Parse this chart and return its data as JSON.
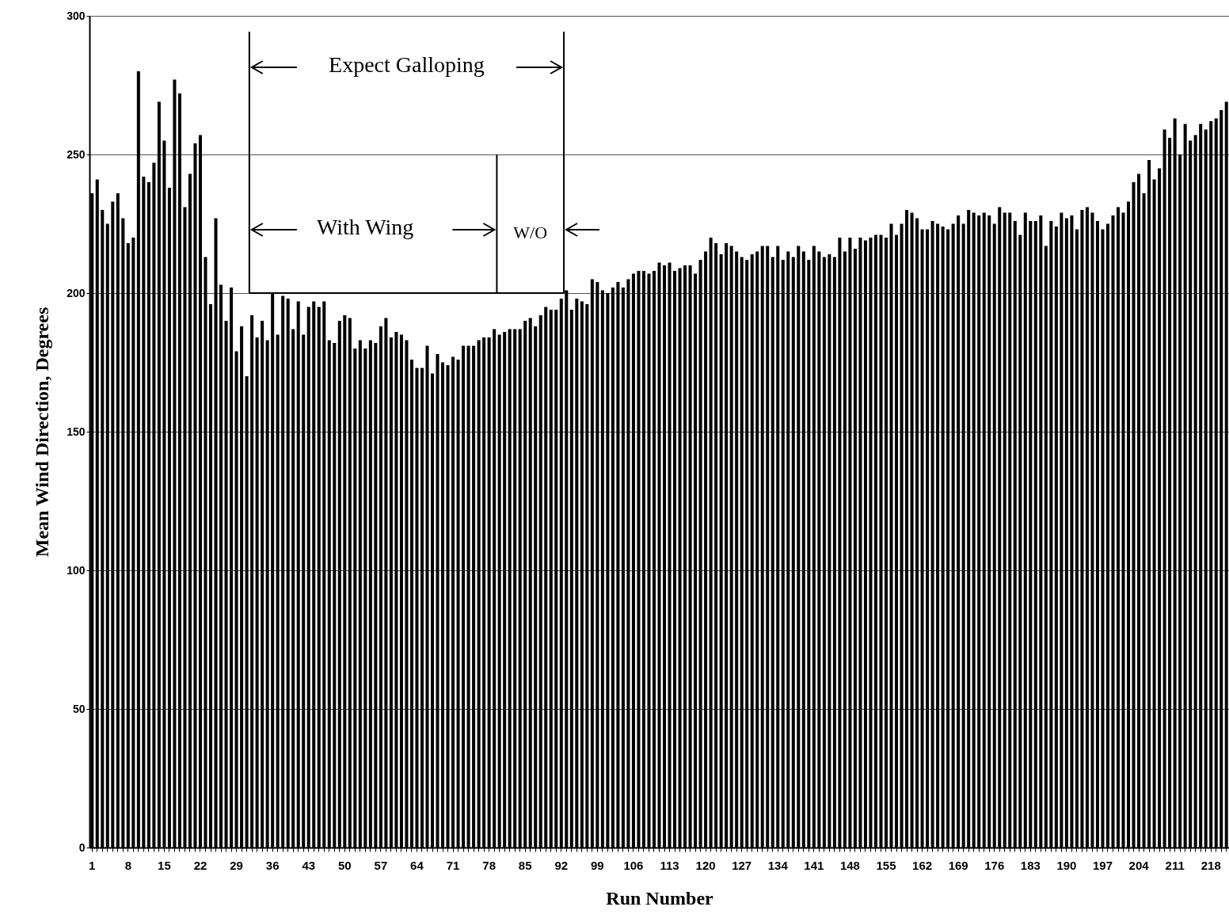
{
  "chart_data": {
    "type": "bar",
    "xlabel": "Run Number",
    "ylabel": "Mean Wind Direction, Degrees",
    "color": "#000000",
    "ylim": [
      0,
      300
    ],
    "yticks": [
      0,
      50,
      100,
      150,
      200,
      250,
      300
    ],
    "grid": "y",
    "annotations": [
      "Expect Galloping",
      "With Wing",
      "W/O"
    ],
    "categories": [
      "1",
      null,
      null,
      null,
      null,
      null,
      null,
      "8",
      null,
      null,
      null,
      null,
      null,
      null,
      "15",
      null,
      null,
      null,
      null,
      null,
      null,
      "22",
      null,
      null,
      null,
      null,
      null,
      null,
      "29",
      null,
      null,
      null,
      null,
      null,
      null,
      "36",
      null,
      null,
      null,
      null,
      null,
      null,
      "43",
      null,
      null,
      null,
      null,
      null,
      null,
      "50",
      null,
      null,
      null,
      null,
      null,
      null,
      "57",
      null,
      null,
      null,
      null,
      null,
      null,
      "64",
      null,
      null,
      null,
      null,
      null,
      null,
      "71",
      null,
      null,
      null,
      null,
      null,
      null,
      "78",
      null,
      null,
      null,
      null,
      null,
      null,
      "85",
      null,
      null,
      null,
      null,
      null,
      null,
      "92",
      null,
      null,
      null,
      null,
      null,
      null,
      "99",
      null,
      null,
      null,
      null,
      null,
      null,
      "106",
      null,
      null,
      null,
      null,
      null,
      null,
      "113",
      null,
      null,
      null,
      null,
      null,
      null,
      "120",
      null,
      null,
      null,
      null,
      null,
      null,
      "127",
      null,
      null,
      null,
      null,
      null,
      null,
      "134",
      null,
      null,
      null,
      null,
      null,
      null,
      "141",
      null,
      null,
      null,
      null,
      null,
      null,
      "148",
      null,
      null,
      null,
      null,
      null,
      null,
      "155",
      null,
      null,
      null,
      null,
      null,
      null,
      "162",
      null,
      null,
      null,
      null,
      null,
      null,
      "169",
      null,
      null,
      null,
      null,
      null,
      null,
      "176",
      null,
      null,
      null,
      null,
      null,
      null,
      "183",
      null,
      null,
      null,
      null,
      null,
      null,
      "190",
      null,
      null,
      null,
      null,
      null,
      null,
      "197",
      null,
      null,
      null,
      null,
      null,
      null,
      "204",
      null,
      null,
      null,
      null,
      null,
      null,
      "211",
      null,
      null,
      null,
      null,
      null,
      null,
      "218",
      null,
      null,
      null
    ],
    "values": [
      236,
      241,
      230,
      225,
      233,
      236,
      227,
      218,
      220,
      280,
      242,
      240,
      247,
      269,
      255,
      238,
      277,
      272,
      231,
      243,
      254,
      257,
      213,
      196,
      227,
      203,
      190,
      202,
      179,
      188,
      170,
      192,
      184,
      190,
      183,
      200,
      185,
      199,
      198,
      187,
      197,
      185,
      195,
      197,
      195,
      197,
      183,
      182,
      190,
      192,
      191,
      180,
      183,
      180,
      183,
      182,
      188,
      191,
      184,
      186,
      185,
      183,
      176,
      173,
      173,
      181,
      171,
      178,
      175,
      174,
      177,
      176,
      181,
      181,
      181,
      183,
      184,
      184,
      187,
      185,
      186,
      187,
      187,
      187,
      190,
      191,
      188,
      192,
      195,
      194,
      194,
      198,
      201,
      194,
      198,
      197,
      196,
      205,
      204,
      201,
      200,
      202,
      204,
      202,
      205,
      207,
      208,
      208,
      207,
      208,
      211,
      210,
      211,
      208,
      209,
      210,
      210,
      207,
      212,
      215,
      220,
      218,
      214,
      218,
      217,
      215,
      213,
      212,
      214,
      215,
      217,
      217,
      213,
      217,
      212,
      215,
      213,
      217,
      215,
      212,
      217,
      215,
      213,
      214,
      213,
      220,
      215,
      220,
      216,
      220,
      219,
      220,
      221,
      221,
      220,
      225,
      221,
      225,
      230,
      229,
      227,
      223,
      223,
      226,
      225,
      224,
      223,
      225,
      228,
      225,
      230,
      229,
      228,
      229,
      228,
      225,
      231,
      229,
      229,
      226,
      221,
      229,
      226,
      226,
      228,
      217,
      226,
      224,
      229,
      227,
      228,
      223,
      230,
      231,
      229,
      226,
      223,
      225,
      228,
      231,
      229,
      233,
      240,
      243,
      236,
      248,
      241,
      245,
      259,
      256,
      263,
      250,
      261,
      255,
      257,
      261,
      259,
      262,
      263,
      266,
      269
    ]
  }
}
